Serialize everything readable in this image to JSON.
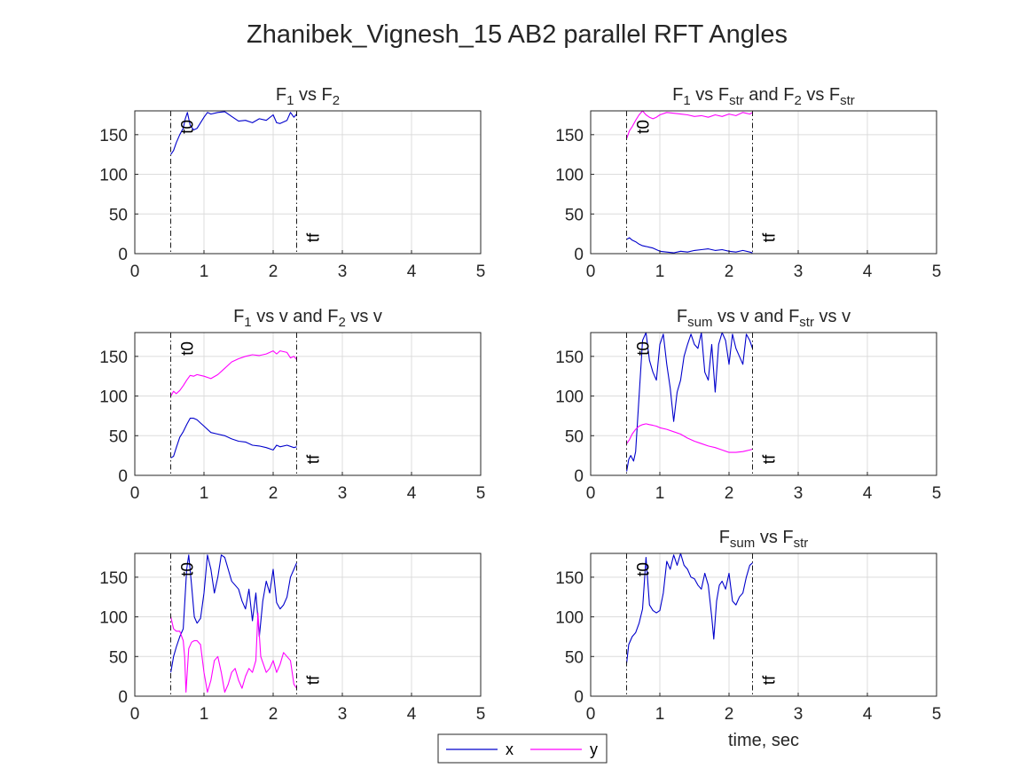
{
  "figure": {
    "title": "Zhanibek_Vignesh_15 AB2 parallel RFT Angles"
  },
  "legend": {
    "placement": "bottom-center",
    "entries": [
      {
        "label": "x",
        "color": "#0000cc"
      },
      {
        "label": "y",
        "color": "#ff00ff"
      }
    ]
  },
  "colors": {
    "x": "#0000cc",
    "y": "#ff00ff",
    "grid": "#dcdcdc",
    "marker": "#000000"
  },
  "chart_data": [
    {
      "type": "line",
      "title": {
        "main": "F",
        "parts": [
          {
            "text": "F"
          },
          {
            "text": "1",
            "sub": true
          },
          {
            "text": " vs F"
          },
          {
            "text": "2",
            "sub": true
          }
        ]
      },
      "xlabel": "",
      "xlim": [
        0,
        5
      ],
      "ylim": [
        0,
        180
      ],
      "xticks": [
        0,
        1,
        2,
        3,
        4,
        5
      ],
      "yticks": [
        0,
        50,
        100,
        150
      ],
      "grid": true,
      "markers": [
        {
          "label": "t0",
          "x": 0.52
        },
        {
          "label": "tf",
          "x": 2.34
        }
      ],
      "series": [
        {
          "color_key": "x",
          "x": [
            0.52,
            0.56,
            0.6,
            0.65,
            0.7,
            0.73,
            0.76,
            0.8,
            0.85,
            0.9,
            0.95,
            1.0,
            1.05,
            1.1,
            1.2,
            1.3,
            1.4,
            1.5,
            1.6,
            1.7,
            1.8,
            1.9,
            2.0,
            2.05,
            2.1,
            2.2,
            2.25,
            2.3,
            2.34
          ],
          "y": [
            125,
            130,
            140,
            150,
            158,
            170,
            178,
            162,
            156,
            158,
            165,
            172,
            178,
            176,
            178,
            179,
            173,
            167,
            168,
            165,
            170,
            168,
            175,
            165,
            164,
            168,
            178,
            172,
            176
          ]
        }
      ]
    },
    {
      "type": "line",
      "title": {
        "main": "F",
        "parts": [
          {
            "text": "F"
          },
          {
            "text": "1",
            "sub": true
          },
          {
            "text": " vs F"
          },
          {
            "text": "str",
            "sub": true
          },
          {
            "text": " and F"
          },
          {
            "text": "2",
            "sub": true
          },
          {
            "text": " vs F"
          },
          {
            "text": "str",
            "sub": true
          }
        ]
      },
      "xlabel": "",
      "xlim": [
        0,
        5
      ],
      "ylim": [
        0,
        180
      ],
      "xticks": [
        0,
        1,
        2,
        3,
        4,
        5
      ],
      "yticks": [
        0,
        50,
        100,
        150
      ],
      "grid": true,
      "markers": [
        {
          "label": "t0",
          "x": 0.52
        },
        {
          "label": "tf",
          "x": 2.34
        }
      ],
      "series": [
        {
          "color_key": "y",
          "x": [
            0.52,
            0.56,
            0.6,
            0.65,
            0.7,
            0.75,
            0.8,
            0.85,
            0.9,
            0.95,
            1.0,
            1.1,
            1.2,
            1.3,
            1.4,
            1.5,
            1.6,
            1.7,
            1.8,
            1.9,
            2.0,
            2.1,
            2.2,
            2.3,
            2.34
          ],
          "y": [
            145,
            155,
            160,
            168,
            175,
            180,
            175,
            172,
            170,
            172,
            175,
            178,
            177,
            176,
            175,
            173,
            174,
            172,
            175,
            173,
            176,
            174,
            178,
            176,
            178
          ]
        },
        {
          "color_key": "x",
          "x": [
            0.52,
            0.56,
            0.6,
            0.65,
            0.7,
            0.75,
            0.8,
            0.85,
            0.9,
            0.95,
            1.0,
            1.1,
            1.2,
            1.3,
            1.4,
            1.5,
            1.6,
            1.7,
            1.8,
            1.9,
            2.0,
            2.1,
            2.2,
            2.3,
            2.34
          ],
          "y": [
            18,
            20,
            17,
            15,
            12,
            10,
            9,
            8,
            7,
            5,
            3,
            2,
            1,
            3,
            2,
            4,
            5,
            6,
            4,
            5,
            3,
            2,
            4,
            2,
            1
          ]
        }
      ]
    },
    {
      "type": "line",
      "title": {
        "main": "F",
        "parts": [
          {
            "text": "F"
          },
          {
            "text": "1",
            "sub": true
          },
          {
            "text": " vs v and F"
          },
          {
            "text": "2",
            "sub": true
          },
          {
            "text": " vs v"
          }
        ]
      },
      "xlabel": "",
      "xlim": [
        0,
        5
      ],
      "ylim": [
        0,
        180
      ],
      "xticks": [
        0,
        1,
        2,
        3,
        4,
        5
      ],
      "yticks": [
        0,
        50,
        100,
        150
      ],
      "grid": true,
      "markers": [
        {
          "label": "t0",
          "x": 0.52
        },
        {
          "label": "tf",
          "x": 2.34
        }
      ],
      "series": [
        {
          "color_key": "y",
          "x": [
            0.52,
            0.56,
            0.6,
            0.65,
            0.7,
            0.75,
            0.8,
            0.85,
            0.9,
            0.95,
            1.0,
            1.1,
            1.2,
            1.3,
            1.4,
            1.5,
            1.6,
            1.7,
            1.8,
            1.9,
            2.0,
            2.05,
            2.1,
            2.2,
            2.25,
            2.3,
            2.34
          ],
          "y": [
            100,
            106,
            103,
            107,
            113,
            120,
            126,
            125,
            127,
            126,
            125,
            122,
            127,
            135,
            143,
            147,
            150,
            152,
            151,
            153,
            157,
            153,
            157,
            155,
            148,
            150,
            146
          ]
        },
        {
          "color_key": "x",
          "x": [
            0.52,
            0.56,
            0.6,
            0.65,
            0.7,
            0.75,
            0.8,
            0.85,
            0.9,
            0.95,
            1.0,
            1.1,
            1.2,
            1.3,
            1.4,
            1.5,
            1.6,
            1.7,
            1.8,
            1.9,
            2.0,
            2.05,
            2.1,
            2.2,
            2.3,
            2.34
          ],
          "y": [
            22,
            24,
            35,
            48,
            55,
            64,
            72,
            72,
            70,
            66,
            62,
            54,
            52,
            50,
            46,
            43,
            42,
            38,
            37,
            35,
            32,
            38,
            36,
            38,
            35,
            36
          ]
        }
      ]
    },
    {
      "type": "line",
      "title": {
        "main": "F",
        "parts": [
          {
            "text": "F"
          },
          {
            "text": "sum",
            "sub": true
          },
          {
            "text": " vs v and F"
          },
          {
            "text": "str",
            "sub": true
          },
          {
            "text": " vs v"
          }
        ]
      },
      "xlabel": "",
      "xlim": [
        0,
        5
      ],
      "ylim": [
        0,
        180
      ],
      "xticks": [
        0,
        1,
        2,
        3,
        4,
        5
      ],
      "yticks": [
        0,
        50,
        100,
        150
      ],
      "grid": true,
      "markers": [
        {
          "label": "t0",
          "x": 0.52
        },
        {
          "label": "tf",
          "x": 2.34
        }
      ],
      "series": [
        {
          "color_key": "x",
          "x": [
            0.52,
            0.55,
            0.58,
            0.62,
            0.65,
            0.7,
            0.75,
            0.8,
            0.85,
            0.9,
            0.95,
            1.0,
            1.05,
            1.1,
            1.15,
            1.2,
            1.25,
            1.3,
            1.35,
            1.4,
            1.45,
            1.5,
            1.55,
            1.6,
            1.65,
            1.7,
            1.75,
            1.8,
            1.85,
            1.9,
            1.95,
            2.0,
            2.05,
            2.1,
            2.15,
            2.2,
            2.25,
            2.3,
            2.34
          ],
          "y": [
            5,
            20,
            25,
            18,
            30,
            100,
            170,
            180,
            145,
            130,
            120,
            165,
            178,
            140,
            110,
            68,
            105,
            120,
            150,
            165,
            178,
            165,
            160,
            180,
            130,
            120,
            165,
            105,
            165,
            180,
            170,
            140,
            178,
            160,
            150,
            140,
            178,
            170,
            160
          ]
        },
        {
          "color_key": "y",
          "x": [
            0.52,
            0.56,
            0.6,
            0.65,
            0.7,
            0.75,
            0.8,
            0.85,
            0.9,
            0.95,
            1.0,
            1.1,
            1.2,
            1.3,
            1.4,
            1.5,
            1.6,
            1.7,
            1.8,
            1.9,
            2.0,
            2.1,
            2.2,
            2.3,
            2.34
          ],
          "y": [
            40,
            45,
            52,
            58,
            62,
            64,
            65,
            64,
            63,
            62,
            60,
            58,
            55,
            52,
            47,
            43,
            40,
            37,
            35,
            32,
            29,
            29,
            30,
            32,
            33
          ]
        }
      ]
    },
    {
      "type": "line",
      "title": {
        "main": "",
        "parts": []
      },
      "xlabel": "",
      "xlim": [
        0,
        5
      ],
      "ylim": [
        0,
        180
      ],
      "xticks": [
        0,
        1,
        2,
        3,
        4,
        5
      ],
      "yticks": [
        0,
        50,
        100,
        150
      ],
      "grid": true,
      "markers": [
        {
          "label": "t0",
          "x": 0.52
        },
        {
          "label": "tf",
          "x": 2.34
        }
      ],
      "series": [
        {
          "color_key": "x",
          "x": [
            0.52,
            0.56,
            0.6,
            0.65,
            0.7,
            0.75,
            0.78,
            0.82,
            0.86,
            0.9,
            0.95,
            1.0,
            1.05,
            1.1,
            1.15,
            1.2,
            1.25,
            1.3,
            1.35,
            1.4,
            1.45,
            1.5,
            1.55,
            1.6,
            1.65,
            1.7,
            1.75,
            1.8,
            1.85,
            1.9,
            1.95,
            2.0,
            2.05,
            2.1,
            2.15,
            2.2,
            2.25,
            2.3,
            2.34
          ],
          "y": [
            30,
            50,
            62,
            75,
            85,
            160,
            178,
            140,
            100,
            92,
            98,
            130,
            178,
            160,
            130,
            150,
            178,
            175,
            160,
            145,
            140,
            135,
            120,
            110,
            135,
            95,
            130,
            75,
            120,
            145,
            130,
            160,
            118,
            110,
            115,
            125,
            150,
            160,
            168
          ]
        },
        {
          "color_key": "y",
          "x": [
            0.52,
            0.56,
            0.6,
            0.65,
            0.7,
            0.72,
            0.74,
            0.78,
            0.82,
            0.86,
            0.9,
            0.95,
            1.0,
            1.05,
            1.1,
            1.15,
            1.2,
            1.25,
            1.3,
            1.35,
            1.4,
            1.45,
            1.5,
            1.55,
            1.6,
            1.65,
            1.7,
            1.75,
            1.78,
            1.82,
            1.86,
            1.9,
            1.95,
            2.0,
            2.05,
            2.1,
            2.15,
            2.2,
            2.25,
            2.3,
            2.34
          ],
          "y": [
            100,
            85,
            82,
            82,
            70,
            50,
            5,
            60,
            68,
            70,
            70,
            65,
            30,
            5,
            20,
            45,
            50,
            30,
            5,
            15,
            30,
            35,
            20,
            10,
            25,
            35,
            30,
            45,
            105,
            50,
            40,
            30,
            35,
            45,
            30,
            40,
            55,
            50,
            45,
            15,
            10
          ]
        }
      ]
    },
    {
      "type": "line",
      "title": {
        "main": "F",
        "parts": [
          {
            "text": "F"
          },
          {
            "text": "sum",
            "sub": true
          },
          {
            "text": " vs F"
          },
          {
            "text": "str",
            "sub": true
          }
        ]
      },
      "xlabel": "time, sec",
      "xlim": [
        0,
        5
      ],
      "ylim": [
        0,
        180
      ],
      "xticks": [
        0,
        1,
        2,
        3,
        4,
        5
      ],
      "yticks": [
        0,
        50,
        100,
        150
      ],
      "grid": true,
      "markers": [
        {
          "label": "t0",
          "x": 0.52
        },
        {
          "label": "tf",
          "x": 2.34
        }
      ],
      "series": [
        {
          "color_key": "x",
          "x": [
            0.52,
            0.55,
            0.6,
            0.65,
            0.7,
            0.75,
            0.8,
            0.85,
            0.9,
            0.95,
            1.0,
            1.05,
            1.1,
            1.15,
            1.2,
            1.25,
            1.3,
            1.35,
            1.4,
            1.45,
            1.5,
            1.55,
            1.6,
            1.65,
            1.7,
            1.75,
            1.78,
            1.82,
            1.86,
            1.9,
            1.95,
            2.0,
            2.05,
            2.1,
            2.15,
            2.2,
            2.25,
            2.3,
            2.34
          ],
          "y": [
            42,
            65,
            75,
            80,
            92,
            110,
            175,
            115,
            108,
            105,
            108,
            130,
            170,
            160,
            178,
            165,
            180,
            165,
            160,
            150,
            148,
            140,
            135,
            155,
            140,
            100,
            72,
            120,
            140,
            145,
            135,
            155,
            120,
            115,
            125,
            130,
            150,
            165,
            168
          ]
        }
      ]
    }
  ]
}
